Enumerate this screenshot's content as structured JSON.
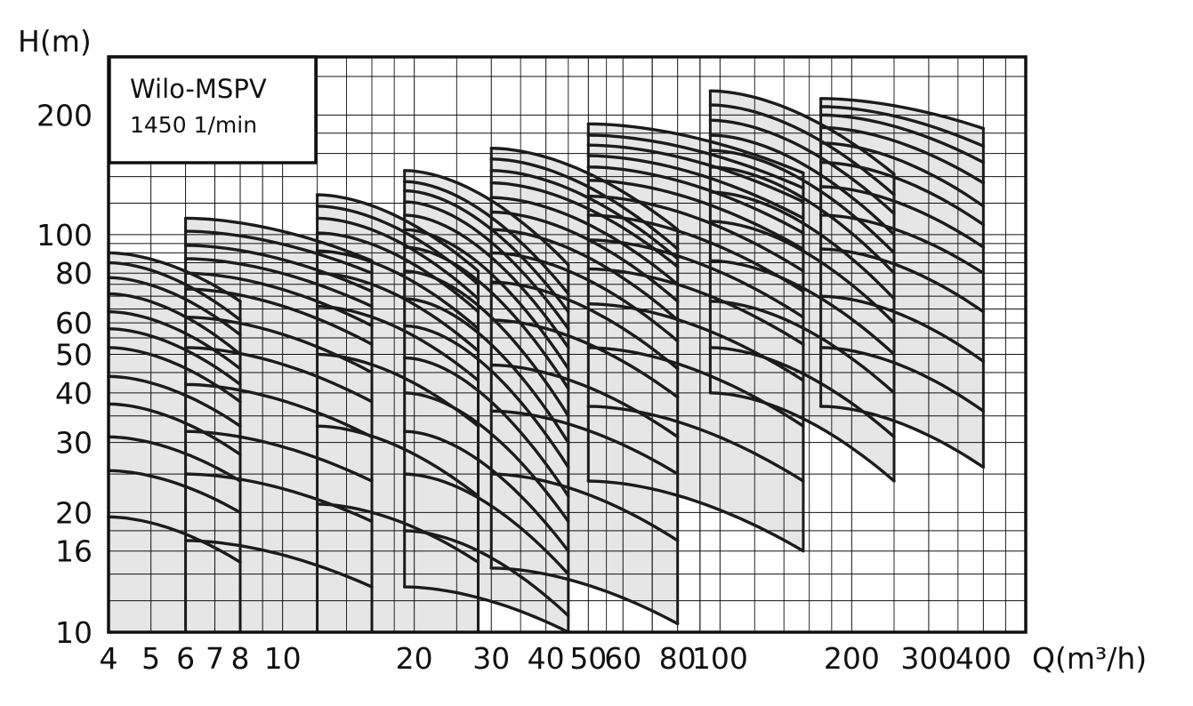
{
  "chart_data": {
    "type": "line",
    "title": "",
    "legend": {
      "title": "Wilo-MSPV",
      "subtitle": "1450 1/min",
      "placement": "top-left"
    },
    "xlabel": "Q(m³/h)",
    "ylabel": "H(m)",
    "x_scale": "log",
    "y_scale": "log",
    "xlim": [
      4,
      500
    ],
    "ylim": [
      10,
      280
    ],
    "grid": true,
    "x_ticks": [
      4,
      5,
      6,
      7,
      8,
      10,
      20,
      30,
      40,
      50,
      60,
      80,
      100,
      200,
      300,
      400
    ],
    "x_tick_labels": [
      "4",
      "5",
      "6",
      "7",
      "8",
      "10",
      "20",
      "30",
      "40",
      "50",
      "60",
      "80",
      "100",
      "200",
      "300",
      "400"
    ],
    "y_ticks": [
      10,
      16,
      20,
      30,
      40,
      50,
      60,
      80,
      100,
      200
    ],
    "y_tick_labels": [
      "10",
      "16",
      "20",
      "30",
      "40",
      "50",
      "60",
      "80",
      "100",
      "200"
    ],
    "areas": [
      {
        "q_start": 4,
        "q_end": 8,
        "start_heads": [
          19.5,
          25.5,
          31,
          37.5,
          44,
          52,
          58,
          64,
          71,
          78,
          85,
          90
        ],
        "end_heads": [
          15,
          20,
          24,
          28,
          33,
          38,
          42,
          46,
          50,
          56,
          61,
          68
        ]
      },
      {
        "q_start": 6,
        "q_end": 16,
        "start_heads": [
          17,
          25,
          32,
          42,
          52,
          62,
          73,
          80,
          87,
          94,
          102,
          110
        ],
        "end_heads": [
          13,
          19,
          24,
          31,
          38,
          45,
          53,
          59,
          66,
          72,
          80,
          86
        ]
      },
      {
        "q_start": 12,
        "q_end": 28,
        "start_heads": [
          21,
          33,
          50,
          66,
          80,
          91,
          101,
          110,
          118,
          126
        ],
        "end_heads": [
          15,
          22,
          33,
          43,
          51,
          58,
          64,
          69,
          75,
          81
        ]
      },
      {
        "q_start": 19,
        "q_end": 45,
        "start_heads": [
          13,
          18,
          25,
          32,
          40,
          49,
          59,
          69,
          81,
          93,
          103,
          112,
          121,
          129,
          136,
          145
        ],
        "end_heads": [
          10,
          11,
          14,
          16,
          19,
          22,
          26,
          30,
          35,
          41,
          46,
          52,
          58,
          64,
          71,
          84
        ]
      },
      {
        "q_start": 30,
        "q_end": 80,
        "start_heads": [
          14.5,
          25,
          36,
          47,
          61,
          76,
          90,
          103,
          114,
          124,
          135,
          145,
          155,
          165
        ],
        "end_heads": [
          10.5,
          17,
          25,
          31,
          39,
          46,
          54,
          61,
          68,
          75,
          83,
          87,
          92,
          103
        ]
      },
      {
        "q_start": 50,
        "q_end": 155,
        "start_heads": [
          24,
          37,
          52,
          67,
          82,
          97,
          112,
          125,
          137,
          148,
          158,
          168,
          178,
          190
        ],
        "end_heads": [
          16,
          24,
          33,
          43,
          53,
          62,
          72,
          81,
          92,
          101,
          110,
          121,
          131,
          143
        ]
      },
      {
        "q_start": 95,
        "q_end": 250,
        "start_heads": [
          40,
          52,
          68,
          86,
          108,
          128,
          148,
          163,
          178,
          194,
          212,
          230
        ],
        "end_heads": [
          24,
          31,
          40,
          50,
          60,
          69,
          80,
          90,
          100,
          113,
          126,
          142
        ]
      },
      {
        "q_start": 170,
        "q_end": 400,
        "start_heads": [
          37,
          52,
          70,
          92,
          112,
          132,
          152,
          170,
          186,
          200,
          210,
          220
        ],
        "end_heads": [
          26,
          36,
          48,
          64,
          80,
          93,
          106,
          118,
          135,
          152,
          167,
          185
        ]
      }
    ],
    "colors": {
      "fill": "#e6e6e6",
      "curve": "#1b1b1b",
      "grid": "#111111",
      "frame": "#111111"
    }
  }
}
